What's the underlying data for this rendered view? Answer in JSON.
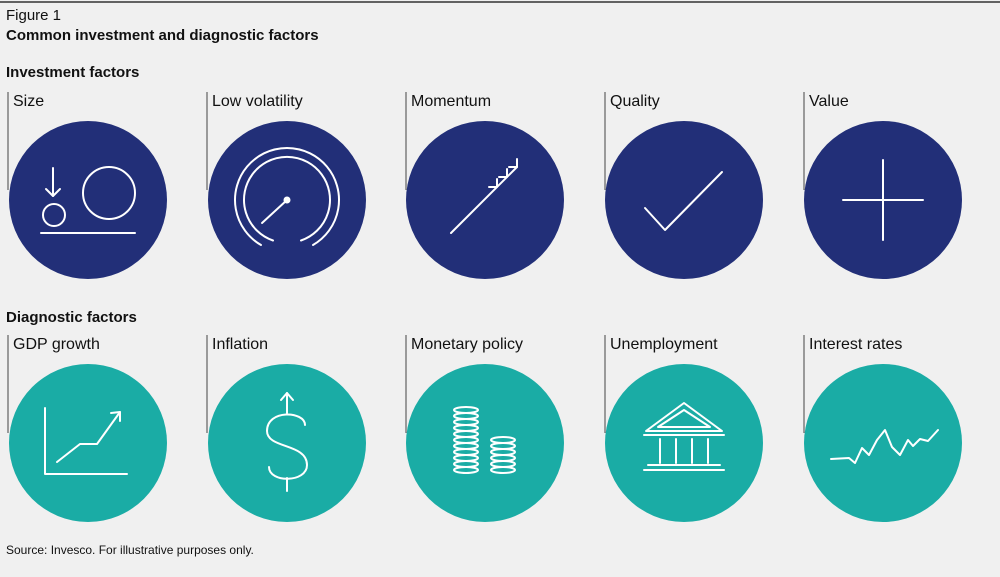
{
  "figure_label": "Figure 1",
  "title": "Common investment and diagnostic factors",
  "sections": [
    {
      "title": "Investment factors",
      "items": [
        "Size",
        "Low volatility",
        "Momentum",
        "Quality",
        "Value"
      ]
    },
    {
      "title": "Diagnostic factors",
      "items": [
        "GDP growth",
        "Inflation",
        "Monetary policy",
        "Unemployment",
        "Interest rates"
      ]
    }
  ],
  "source": "Source: Invesco. For illustrative purposes only."
}
